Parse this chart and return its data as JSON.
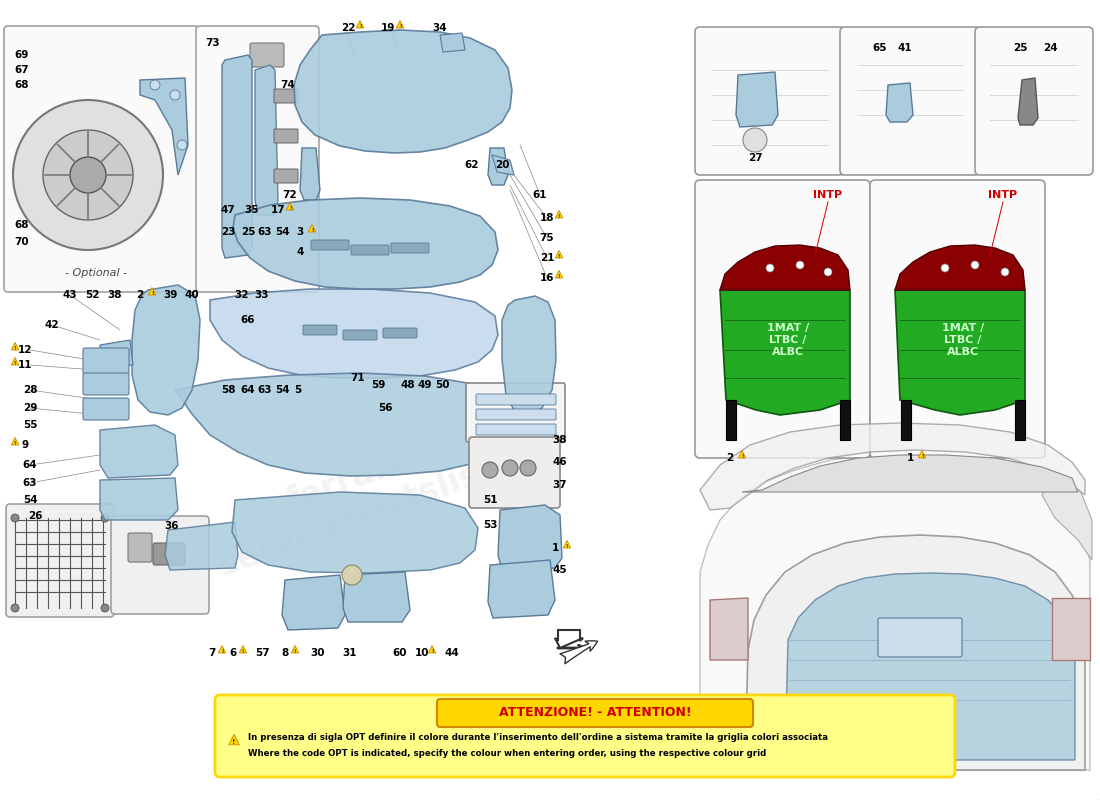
{
  "bg_color": "#FFFFFF",
  "parts_color": "#AACCDD",
  "parts_color2": "#B8D4E8",
  "outline_color": "#5A7A9A",
  "dark_outline": "#3A5A7A",
  "warning_color": "#FFD700",
  "warning_border": "#CC8800",
  "attention_bg": "#FFFF88",
  "attention_border": "#FFD700",
  "green_color": "#22AA22",
  "dark_red_color": "#8B0000",
  "black_color": "#111111",
  "text_color": "#000000",
  "label_fs": 7.5,
  "small_fs": 6.5,
  "attention_title": "ATTENZIONE! - ATTENTION!",
  "attention_it": "In presenza di sigla OPT definire il colore durante l'inserimento dell'ordine a sistema tramite la griglia colori associata",
  "attention_en": "Where the code OPT is indicated, specify the colour when entering order, using the respective colour grid",
  "optional_text": "- Optional -",
  "intp_text": "INTP",
  "mat_text": "1MAT /\nLTBC /\nALBC"
}
